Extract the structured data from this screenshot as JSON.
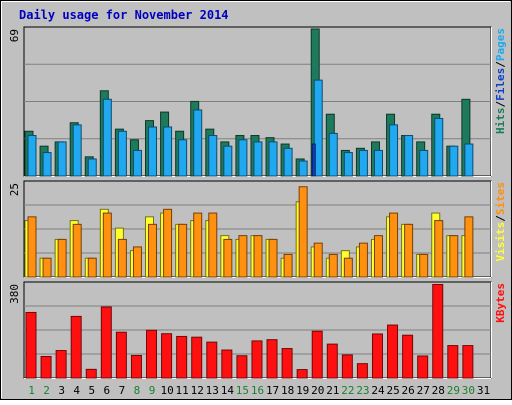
{
  "chart_data": {
    "type": "bar",
    "title": "Daily usage for November 2014",
    "categories": [
      "1",
      "2",
      "3",
      "4",
      "5",
      "6",
      "7",
      "8",
      "9",
      "10",
      "11",
      "12",
      "13",
      "14",
      "15",
      "16",
      "17",
      "18",
      "19",
      "20",
      "21",
      "22",
      "23",
      "24",
      "25",
      "26",
      "27",
      "28",
      "29",
      "30",
      "31"
    ],
    "weekend_days": [
      "1",
      "2",
      "8",
      "9",
      "15",
      "16",
      "22",
      "23",
      "29",
      "30"
    ],
    "colors": {
      "hits": "#1e7a5c",
      "files": "#20a8f0",
      "pages": "#1040c8",
      "visits": "#ffff30",
      "sites": "#ff9010",
      "kbytes": "#ff1010",
      "weekday_label": "#000000",
      "weekend_label": "#1e8030",
      "title": "#0000c0",
      "background": "#c0c0c0"
    },
    "panels": [
      {
        "id": "hits_files_pages",
        "ymax_label": "69",
        "ylim": [
          0,
          69
        ],
        "legend": [
          {
            "text": "Hits",
            "color": "#1e7a5c"
          },
          {
            "text": "Files",
            "color": "#1040c8"
          },
          {
            "text": "Pages",
            "color": "#20a8f0"
          }
        ],
        "series": [
          {
            "name": "Hits",
            "values": [
              21,
              14,
              16,
              25,
              9,
              40,
              22,
              17,
              26,
              30,
              21,
              35,
              22,
              16,
              19,
              19,
              18,
              15,
              8,
              69,
              29,
              12,
              13,
              16,
              29,
              19,
              16,
              29,
              14,
              36,
              0
            ]
          },
          {
            "name": "Files",
            "values": [
              19,
              11,
              16,
              24,
              8,
              36,
              21,
              12,
              23,
              23,
              17,
              31,
              19,
              14,
              17,
              16,
              16,
              13,
              7,
              45,
              20,
              11,
              12,
              12,
              24,
              19,
              12,
              27,
              14,
              15,
              0
            ]
          },
          {
            "name": "Pages",
            "values": [
              0,
              0,
              0,
              0,
              0,
              0,
              0,
              0,
              0,
              0,
              0,
              0,
              0,
              0,
              0,
              0,
              0,
              0,
              0,
              15,
              0,
              0,
              0,
              0,
              0,
              0,
              0,
              0,
              0,
              0,
              0
            ]
          }
        ]
      },
      {
        "id": "visits_sites",
        "ymax_label": "25",
        "ylim": [
          0,
          25
        ],
        "legend": [
          {
            "text": "Visits",
            "color": "#ffff30"
          },
          {
            "text": "Sites",
            "color": "#ff9010"
          }
        ],
        "series": [
          {
            "name": "Visits",
            "values": [
              15,
              5,
              10,
              15,
              5,
              18,
              13,
              7,
              16,
              17,
              14,
              15,
              15,
              11,
              10,
              11,
              10,
              5,
              20,
              8,
              5,
              7,
              8,
              10,
              16,
              14,
              6,
              17,
              11,
              11,
              0
            ]
          },
          {
            "name": "Sites",
            "values": [
              16,
              5,
              10,
              14,
              5,
              17,
              10,
              8,
              14,
              18,
              14,
              17,
              17,
              10,
              11,
              11,
              10,
              6,
              24,
              9,
              6,
              5,
              9,
              11,
              17,
              14,
              6,
              15,
              11,
              16,
              0
            ]
          }
        ]
      },
      {
        "id": "kbytes",
        "ymax_label": "380",
        "ylim": [
          0,
          380
        ],
        "legend": [
          {
            "text": "KBytes",
            "color": "#ff1010"
          }
        ],
        "series": [
          {
            "name": "KBytes",
            "values": [
              265,
              87,
              111,
              249,
              35,
              287,
              185,
              91,
              193,
              179,
              168,
              165,
              145,
              113,
              90,
              150,
              155,
              119,
              34,
              189,
              137,
              93,
              58,
              178,
              214,
              173,
              89,
              378,
              131,
              131,
              0
            ]
          }
        ]
      }
    ]
  }
}
